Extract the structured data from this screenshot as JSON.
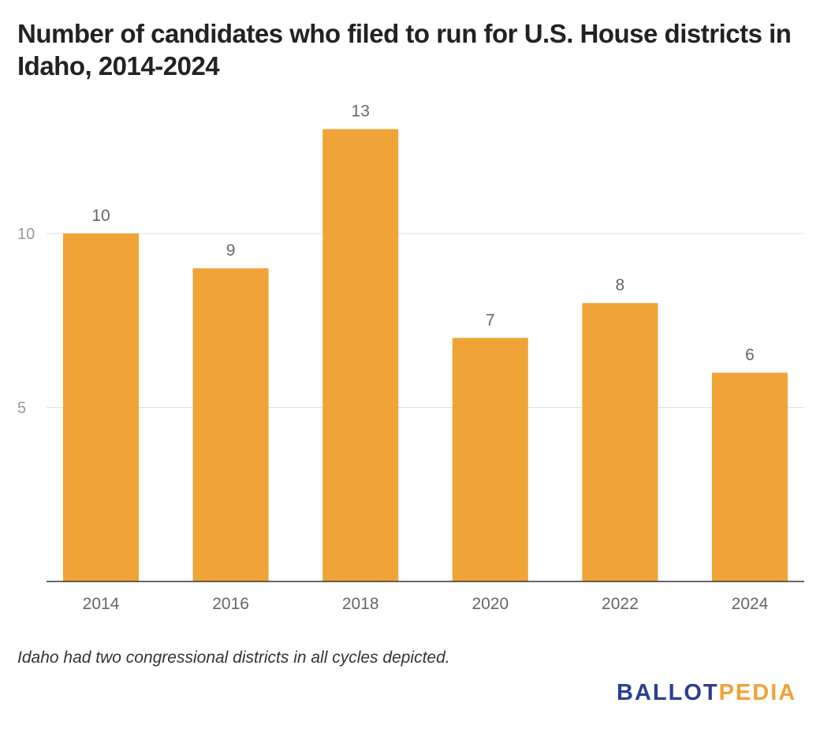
{
  "chart_data": {
    "type": "bar",
    "title": "Number of candidates who filed to run for U.S. House districts in Idaho, 2014-2024",
    "categories": [
      "2014",
      "2016",
      "2018",
      "2020",
      "2022",
      "2024"
    ],
    "values": [
      10,
      9,
      13,
      7,
      8,
      6
    ],
    "data_labels": [
      "10",
      "9",
      "13",
      "7",
      "8",
      "6"
    ],
    "xlabel": "",
    "ylabel": "",
    "ylim": [
      0,
      13.9
    ],
    "yticks": [
      5,
      10
    ],
    "ytick_labels": [
      "5",
      "10"
    ],
    "grid": true,
    "legend": "none",
    "bar_color": "#f0a336"
  },
  "note": "Idaho had two congressional districts in all cycles depicted.",
  "logo": {
    "part1": "BALLOT",
    "part2": "PEDIA"
  },
  "colors": {
    "bar": "#f0a336",
    "grid": "#e0e0e0",
    "axis": "#333333",
    "tick_text": "#999999",
    "label_text": "#666666",
    "logo_blue": "#2c3e91",
    "logo_orange": "#f0a336"
  }
}
